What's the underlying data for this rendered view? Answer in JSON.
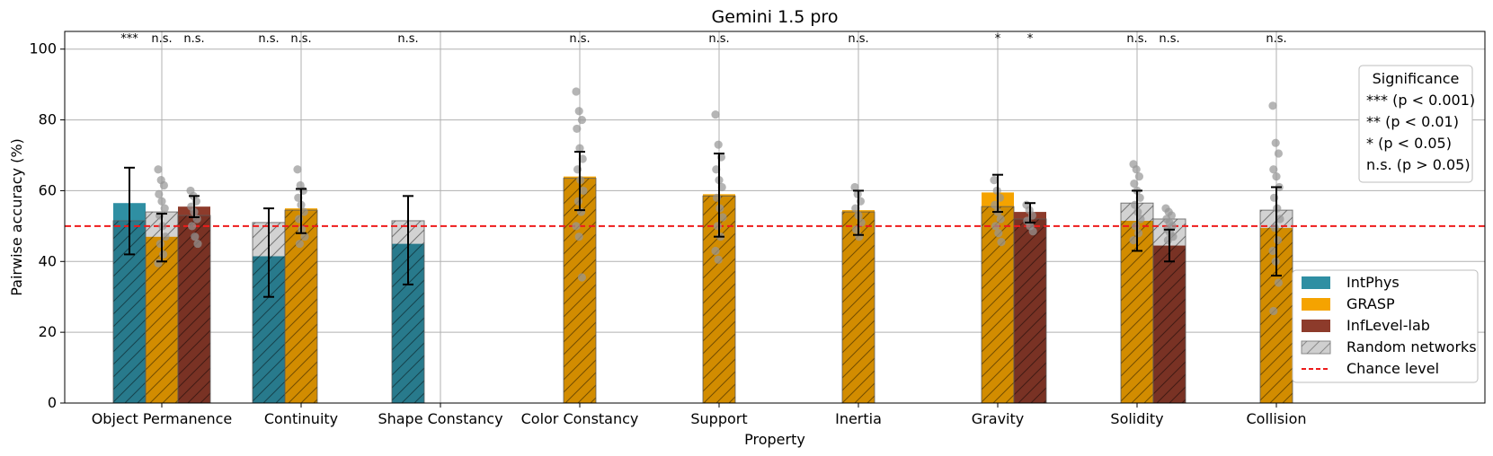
{
  "chart_data": {
    "type": "bar",
    "title": "Gemini 1.5 pro",
    "xlabel": "Property",
    "ylabel": "Pairwise accuracy (%)",
    "ylim": [
      0,
      105
    ],
    "yticks": [
      0,
      20,
      40,
      60,
      80,
      100
    ],
    "grid": true,
    "categories": [
      "Object Permanence",
      "Continuity",
      "Shape Constancy",
      "Color Constancy",
      "Support",
      "Inertia",
      "Gravity",
      "Solidity",
      "Collision"
    ],
    "chance_level": 50,
    "series": [
      {
        "name": "IntPhys",
        "color": "#2f8fa3",
        "offset": -1,
        "values": [
          56.5,
          41.5,
          45,
          null,
          null,
          null,
          null,
          null,
          null
        ],
        "err_low": [
          42,
          30,
          33.5,
          null,
          null,
          null,
          null,
          null,
          null
        ],
        "err_high": [
          66.5,
          55,
          58.5,
          null,
          null,
          null,
          null,
          null,
          null
        ],
        "random": [
          51.5,
          51,
          51.5,
          null,
          null,
          null,
          null,
          null,
          null
        ],
        "significance": [
          "***",
          "n.s.",
          "n.s.",
          null,
          null,
          null,
          null,
          null,
          null
        ],
        "points": [
          [],
          [],
          [],
          [],
          [],
          [],
          [],
          [],
          []
        ]
      },
      {
        "name": "GRASP",
        "color": "#f5a300",
        "offset": 0,
        "values": [
          47,
          55,
          null,
          64,
          59,
          54.5,
          59.5,
          51.5,
          49.5
        ],
        "err_low": [
          40,
          48,
          null,
          54.5,
          47,
          47.5,
          54,
          43,
          36
        ],
        "err_high": [
          53.5,
          60.5,
          null,
          71,
          70.5,
          60,
          64.5,
          60,
          61
        ],
        "random": [
          54,
          54.5,
          null,
          63.5,
          58.5,
          54,
          55.5,
          56.5,
          54.5
        ],
        "significance": [
          "n.s.",
          "n.s.",
          null,
          "n.s.",
          "n.s.",
          "n.s.",
          "*",
          "n.s.",
          "n.s."
        ],
        "points": [
          [
            66,
            63,
            61.5,
            59,
            57,
            55,
            53,
            50,
            47,
            45,
            42,
            39.5
          ],
          [
            66,
            61.5,
            60,
            58,
            56,
            54,
            52,
            49,
            47,
            45
          ],
          [],
          [
            88,
            82.5,
            80,
            77.5,
            72,
            69,
            66,
            63,
            60,
            57,
            54,
            50,
            47,
            35.5
          ],
          [
            81.5,
            73,
            69.5,
            66,
            63,
            61,
            58,
            55,
            52.5,
            50,
            47,
            43,
            40.5
          ],
          [
            61,
            59,
            57,
            55,
            53,
            51,
            49,
            47
          ],
          [
            63,
            60,
            58,
            56,
            54,
            52,
            50,
            48,
            45.5
          ],
          [
            67.5,
            66,
            64,
            62,
            60,
            58,
            56,
            54,
            52,
            50,
            48,
            46
          ],
          [
            84,
            73.5,
            70.5,
            66,
            64,
            61,
            58,
            55,
            52,
            49.5,
            46,
            43,
            40,
            34,
            26
          ]
        ]
      },
      {
        "name": "InfLevel-lab",
        "color": "#8d3b2b",
        "offset": 1,
        "values": [
          55.5,
          null,
          null,
          null,
          null,
          null,
          54,
          44.5,
          null
        ],
        "err_low": [
          52.5,
          null,
          null,
          null,
          null,
          null,
          51,
          40,
          null
        ],
        "err_high": [
          58.5,
          null,
          null,
          null,
          null,
          null,
          56.5,
          49,
          null
        ],
        "random": [
          53,
          null,
          null,
          null,
          null,
          null,
          52,
          52,
          null
        ],
        "significance": [
          "n.s.",
          null,
          null,
          null,
          null,
          null,
          "*",
          "n.s.",
          null
        ],
        "points": [
          [
            60,
            58.5,
            57,
            55.5,
            54,
            52,
            50,
            47,
            45
          ],
          [],
          [],
          [],
          [],
          [],
          [
            56,
            54.5,
            53,
            51.5,
            50,
            48.5
          ],
          [
            55,
            54,
            53,
            52,
            51,
            50,
            49,
            48,
            47,
            46
          ],
          []
        ]
      }
    ],
    "legend": {
      "placement": "lower-right",
      "items": [
        {
          "label": "IntPhys",
          "kind": "patch",
          "color": "#2f8fa3"
        },
        {
          "label": "GRASP",
          "kind": "patch",
          "color": "#f5a300"
        },
        {
          "label": "InfLevel-lab",
          "kind": "patch",
          "color": "#8d3b2b"
        },
        {
          "label": "Random networks",
          "kind": "hatch",
          "color": "#c8c8c8"
        },
        {
          "label": "Chance level",
          "kind": "dashed",
          "color": "#ee1b1b"
        }
      ]
    },
    "significance_box": {
      "placement": "upper-right",
      "title": "Significance",
      "lines": [
        "*** (p < 0.001)",
        "** (p < 0.01)",
        "* (p < 0.05)",
        "n.s. (p > 0.05)"
      ]
    }
  }
}
